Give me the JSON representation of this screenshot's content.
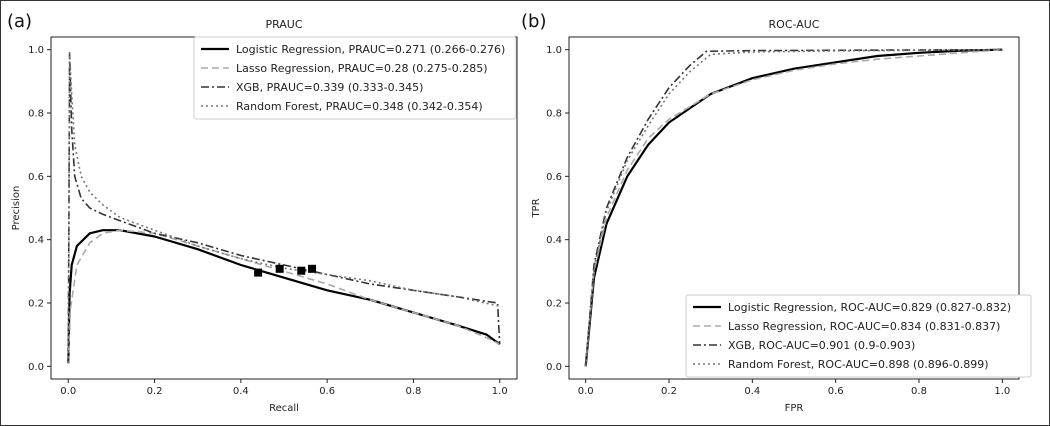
{
  "chart_data": [
    {
      "panel_label": "(a)",
      "type": "line",
      "title": "PRAUC",
      "xlabel": "Recall",
      "ylabel": "Precision",
      "xlim": [
        0,
        1
      ],
      "ylim": [
        0,
        1
      ],
      "xticks": [
        "0.0",
        "0.2",
        "0.4",
        "0.6",
        "0.8",
        "1.0"
      ],
      "yticks": [
        "0.0",
        "0.2",
        "0.4",
        "0.6",
        "0.8",
        "1.0"
      ],
      "legend_position": "top-right",
      "series": [
        {
          "name": "Logistic Regression, PRAUC=0.271 (0.266-0.276)",
          "style": "solid",
          "x": [
            0,
            0.003,
            0.008,
            0.02,
            0.05,
            0.08,
            0.12,
            0.2,
            0.3,
            0.4,
            0.5,
            0.6,
            0.7,
            0.8,
            0.9,
            0.97,
            1.0
          ],
          "y": [
            0.01,
            0.23,
            0.32,
            0.38,
            0.42,
            0.43,
            0.43,
            0.41,
            0.37,
            0.32,
            0.28,
            0.24,
            0.21,
            0.17,
            0.13,
            0.1,
            0.07
          ]
        },
        {
          "name": "Lasso Regression, PRAUC=0.28 (0.275-0.285)",
          "style": "dashed",
          "x": [
            0,
            0.005,
            0.02,
            0.05,
            0.08,
            0.12,
            0.2,
            0.3,
            0.4,
            0.5,
            0.6,
            0.7,
            0.8,
            0.9,
            0.97,
            1.0
          ],
          "y": [
            0.01,
            0.18,
            0.32,
            0.39,
            0.42,
            0.43,
            0.42,
            0.38,
            0.34,
            0.3,
            0.26,
            0.21,
            0.17,
            0.13,
            0.09,
            0.07
          ]
        },
        {
          "name": "XGB, PRAUC=0.339 (0.333-0.345)",
          "style": "dashdot",
          "x": [
            0,
            0.003,
            0.008,
            0.015,
            0.03,
            0.05,
            0.08,
            0.12,
            0.2,
            0.3,
            0.4,
            0.5,
            0.6,
            0.7,
            0.8,
            0.9,
            0.995,
            1.0
          ],
          "y": [
            0.01,
            0.99,
            0.75,
            0.6,
            0.53,
            0.5,
            0.48,
            0.46,
            0.42,
            0.39,
            0.35,
            0.32,
            0.29,
            0.26,
            0.24,
            0.22,
            0.2,
            0.07
          ]
        },
        {
          "name": "Random Forest, PRAUC=0.348 (0.342-0.354)",
          "style": "dotted",
          "x": [
            0,
            0.003,
            0.008,
            0.015,
            0.03,
            0.05,
            0.08,
            0.12,
            0.2,
            0.3,
            0.4,
            0.5,
            0.6,
            0.7,
            0.8,
            0.9,
            1.0
          ],
          "y": [
            0.01,
            0.99,
            0.86,
            0.7,
            0.6,
            0.55,
            0.51,
            0.47,
            0.43,
            0.38,
            0.34,
            0.31,
            0.29,
            0.27,
            0.24,
            0.22,
            0.19
          ]
        }
      ],
      "markers": {
        "shape": "square",
        "points": [
          {
            "x": 0.44,
            "y": 0.296
          },
          {
            "x": 0.49,
            "y": 0.308
          },
          {
            "x": 0.54,
            "y": 0.302
          },
          {
            "x": 0.565,
            "y": 0.308
          }
        ]
      }
    },
    {
      "panel_label": "(b)",
      "type": "line",
      "title": "ROC-AUC",
      "xlabel": "FPR",
      "ylabel": "TPR",
      "xlim": [
        0,
        1
      ],
      "ylim": [
        0,
        1
      ],
      "xticks": [
        "0.0",
        "0.2",
        "0.4",
        "0.6",
        "0.8",
        "1.0"
      ],
      "yticks": [
        "0.0",
        "0.2",
        "0.4",
        "0.6",
        "0.8",
        "1.0"
      ],
      "legend_position": "bottom-right",
      "series": [
        {
          "name": "Logistic Regression, ROC-AUC=0.829 (0.827-0.832)",
          "style": "solid",
          "x": [
            0,
            0.02,
            0.05,
            0.1,
            0.15,
            0.2,
            0.3,
            0.4,
            0.5,
            0.6,
            0.7,
            0.8,
            0.9,
            1.0
          ],
          "y": [
            0,
            0.28,
            0.45,
            0.6,
            0.7,
            0.77,
            0.86,
            0.91,
            0.94,
            0.96,
            0.98,
            0.99,
            0.997,
            1.0
          ]
        },
        {
          "name": "Lasso Regression, ROC-AUC=0.834 (0.831-0.837)",
          "style": "dashed",
          "x": [
            0,
            0.02,
            0.05,
            0.1,
            0.15,
            0.2,
            0.3,
            0.4,
            0.5,
            0.6,
            0.7,
            0.8,
            0.9,
            1.0
          ],
          "y": [
            0,
            0.3,
            0.47,
            0.62,
            0.72,
            0.78,
            0.86,
            0.905,
            0.935,
            0.955,
            0.97,
            0.98,
            0.99,
            1.0
          ]
        },
        {
          "name": "XGB, ROC-AUC=0.901 (0.9-0.903)",
          "style": "dashdot",
          "x": [
            0,
            0.02,
            0.05,
            0.1,
            0.15,
            0.2,
            0.25,
            0.29,
            0.4,
            0.6,
            0.8,
            1.0
          ],
          "y": [
            0,
            0.32,
            0.5,
            0.66,
            0.78,
            0.88,
            0.95,
            0.995,
            0.997,
            0.998,
            0.999,
            1.0
          ]
        },
        {
          "name": "Random Forest, ROC-AUC=0.898 (0.896-0.899)",
          "style": "dotted",
          "x": [
            0,
            0.02,
            0.05,
            0.1,
            0.15,
            0.2,
            0.25,
            0.3,
            0.4,
            0.6,
            0.8,
            1.0
          ],
          "y": [
            0,
            0.31,
            0.49,
            0.65,
            0.76,
            0.86,
            0.93,
            0.985,
            0.993,
            0.996,
            0.998,
            1.0
          ]
        }
      ]
    }
  ],
  "styles": {
    "solid": {
      "color": "#000000",
      "width": 2.2,
      "dash": ""
    },
    "dashed": {
      "color": "#aaaaaa",
      "width": 1.6,
      "dash": "7,4"
    },
    "dashdot": {
      "color": "#333333",
      "width": 1.6,
      "dash": "8,3,2,3"
    },
    "dotted": {
      "color": "#777777",
      "width": 1.6,
      "dash": "2,3"
    }
  }
}
